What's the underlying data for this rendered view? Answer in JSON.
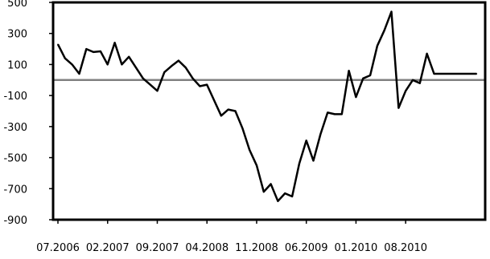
{
  "chart_data": {
    "type": "line",
    "title": "",
    "xlabel": "",
    "ylabel": "",
    "ylim": [
      -900,
      500
    ],
    "yticks": [
      500,
      300,
      100,
      -100,
      -300,
      -500,
      -700,
      -900
    ],
    "ytick_labels": [
      "500",
      "300",
      "100",
      "-100",
      "-300",
      "-500",
      "-700",
      "-900"
    ],
    "xtick_labels": [
      "07.2006",
      "02.2007",
      "09.2007",
      "04.2008",
      "11.2008",
      "06.2009",
      "01.2010",
      "08.2010"
    ],
    "x_range": [
      "07.2006",
      "06.2011"
    ],
    "grid": false,
    "legend": "none",
    "reference_line": 0,
    "colors": {
      "line": "#000000",
      "reference": "#808080",
      "axis": "#000000"
    },
    "series": [
      {
        "x": [
          "07.2006",
          "08.2006",
          "09.2006",
          "10.2006",
          "11.2006",
          "12.2006",
          "01.2007",
          "02.2007",
          "03.2007",
          "04.2007",
          "05.2007",
          "06.2007",
          "07.2007",
          "08.2007",
          "09.2007",
          "10.2007",
          "11.2007",
          "12.2007",
          "01.2008",
          "02.2008",
          "03.2008",
          "04.2008",
          "05.2008",
          "06.2008",
          "07.2008",
          "08.2008",
          "09.2008",
          "10.2008",
          "11.2008",
          "12.2008",
          "01.2009",
          "02.2009",
          "03.2009",
          "04.2009",
          "05.2009",
          "06.2009",
          "07.2009",
          "08.2009",
          "09.2009",
          "10.2009",
          "11.2009",
          "12.2009",
          "01.2010",
          "02.2010",
          "03.2010",
          "04.2010",
          "05.2010",
          "06.2010",
          "07.2010",
          "08.2010",
          "09.2010",
          "10.2010",
          "11.2010",
          "12.2010",
          "01.2011",
          "02.2011",
          "03.2011",
          "04.2011",
          "05.2011",
          "06.2011"
        ],
        "values": [
          230,
          140,
          100,
          40,
          200,
          180,
          185,
          100,
          240,
          100,
          150,
          80,
          10,
          -30,
          -70,
          50,
          90,
          125,
          80,
          10,
          -40,
          -30,
          -130,
          -230,
          -190,
          -200,
          -310,
          -450,
          -550,
          -720,
          -670,
          -780,
          -730,
          -750,
          -540,
          -390,
          -520,
          -350,
          -210,
          -220,
          -220,
          60,
          -110,
          10,
          30,
          220,
          320,
          440,
          -180,
          -70,
          0,
          -20,
          170,
          40,
          40,
          40,
          40,
          40,
          40,
          40
        ]
      }
    ]
  }
}
